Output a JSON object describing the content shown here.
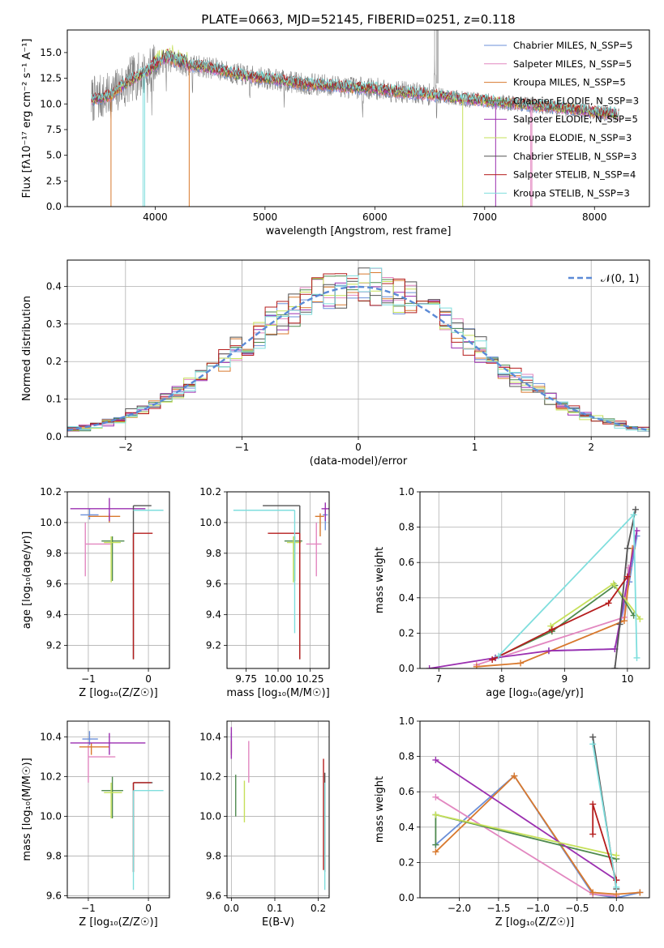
{
  "colors": {
    "series": [
      "#6b8fd8",
      "#e287c0",
      "#d8792e",
      "#4e8a4e",
      "#9b2fb0",
      "#c6e05a",
      "#545454",
      "#b51d1d",
      "#7fdedd"
    ],
    "data": "#808080",
    "data_light": "#b8b8b8",
    "normal": "#5b8ad6"
  },
  "chart_data": [
    {
      "id": "spectrum",
      "type": "line",
      "title": "PLATE=0663, MJD=52145, FIBERID=0251, z=0.118",
      "xlabel": "wavelength [Angstrom, rest frame]",
      "ylabel": "Flux [fλ10⁻¹⁷ erg cm⁻² s⁻¹ A⁻¹]",
      "xlim": [
        3200,
        8500
      ],
      "ylim": [
        0,
        17.2
      ],
      "xticks": [
        4000,
        5000,
        6000,
        7000,
        8000
      ],
      "yticks": [
        0.0,
        2.5,
        5.0,
        7.5,
        10.0,
        12.5,
        15.0
      ],
      "grid": false,
      "legend_position": "top-right",
      "continuum": [
        [
          3420,
          10.4
        ],
        [
          3500,
          10.6
        ],
        [
          3600,
          10.8
        ],
        [
          3700,
          11.8
        ],
        [
          3800,
          12.5
        ],
        [
          3900,
          13.0
        ],
        [
          4000,
          13.6
        ],
        [
          4100,
          14.3
        ],
        [
          4200,
          14.0
        ],
        [
          4300,
          13.7
        ],
        [
          4400,
          13.7
        ],
        [
          4500,
          13.5
        ],
        [
          4600,
          13.3
        ],
        [
          4700,
          13.0
        ],
        [
          4800,
          12.8
        ],
        [
          4900,
          12.6
        ],
        [
          5000,
          12.5
        ],
        [
          5200,
          12.2
        ],
        [
          5400,
          11.9
        ],
        [
          5600,
          11.8
        ],
        [
          5800,
          11.6
        ],
        [
          6000,
          11.5
        ],
        [
          6200,
          11.2
        ],
        [
          6400,
          11.0
        ],
        [
          6600,
          10.8
        ],
        [
          6800,
          10.5
        ],
        [
          7000,
          10.3
        ],
        [
          7200,
          10.1
        ],
        [
          7400,
          9.9
        ],
        [
          7600,
          9.7
        ],
        [
          7800,
          9.5
        ],
        [
          8000,
          9.2
        ],
        [
          8200,
          9.0
        ]
      ],
      "series": [
        {
          "name": "Chabrier MILES, N_SSP=5"
        },
        {
          "name": "Salpeter MILES, N_SSP=5"
        },
        {
          "name": "Kroupa MILES, N_SSP=5"
        },
        {
          "name": "Chabrier ELODIE, N_SSP=3"
        },
        {
          "name": "Salpeter ELODIE, N_SSP=5"
        },
        {
          "name": "Kroupa ELODIE, N_SSP=3"
        },
        {
          "name": "Chabrier STELIB, N_SSP=3"
        },
        {
          "name": "Salpeter STELIB, N_SSP=4"
        },
        {
          "name": "Kroupa STELIB, N_SSP=3"
        }
      ]
    },
    {
      "id": "residuals",
      "type": "line",
      "xlabel": "(data-model)/error",
      "ylabel": "Normed distribution",
      "xlim": [
        -2.5,
        2.5
      ],
      "ylim": [
        0,
        0.47
      ],
      "xticks": [
        -2,
        -1,
        0,
        1,
        2
      ],
      "yticks": [
        0.0,
        0.1,
        0.2,
        0.3,
        0.4
      ],
      "grid": true,
      "legend_position": "top-right",
      "normal_label": "𝒩(0, 1)",
      "bin_edges": [
        -2.5,
        2.5
      ],
      "bins": 50
    },
    {
      "id": "age_vs_Z",
      "type": "scatter",
      "xlabel": "Z [log₁₀(Z/Z☉)]",
      "ylabel": "age  [log₁₀(age/yr)]",
      "xlim": [
        -1.35,
        0.35
      ],
      "ylim": [
        9.05,
        10.2
      ],
      "xticks": [
        -1,
        0
      ],
      "yticks": [
        9.2,
        9.4,
        9.6,
        9.8,
        10.0,
        10.2
      ],
      "grid": true,
      "points": [
        {
          "s": 0,
          "x": -0.98,
          "xe": [
            0.15,
            0.15
          ],
          "y": 10.05,
          "ye": [
            0.03,
            0.04
          ]
        },
        {
          "s": 1,
          "x": -1.05,
          "xe": [
            0.0,
            0.45
          ],
          "y": 9.86,
          "ye": [
            0.21,
            0.14
          ]
        },
        {
          "s": 2,
          "x": -0.65,
          "xe": [
            0.35,
            0.18
          ],
          "y": 10.04,
          "ye": [
            0.04,
            0.02
          ]
        },
        {
          "s": 3,
          "x": -0.6,
          "xe": [
            0.18,
            0.2
          ],
          "y": 9.88,
          "ye": [
            0.26,
            0.03
          ]
        },
        {
          "s": 4,
          "x": -0.65,
          "xe": [
            0.65,
            0.6
          ],
          "y": 10.09,
          "ye": [
            0.08,
            0.07
          ]
        },
        {
          "s": 5,
          "x": -0.62,
          "xe": [
            0.12,
            0.16
          ],
          "y": 9.87,
          "ye": [
            0.26,
            0.04
          ]
        },
        {
          "s": 6,
          "x": -0.25,
          "xe": [
            0.0,
            0.3
          ],
          "y": 10.11,
          "ye": [
            1.0,
            0.0
          ]
        },
        {
          "s": 7,
          "x": -0.25,
          "xe": [
            0.0,
            0.32
          ],
          "y": 9.93,
          "ye": [
            0.82,
            0.0
          ]
        },
        {
          "s": 8,
          "x": -0.25,
          "xe": [
            0.0,
            0.5
          ],
          "y": 10.08,
          "ye": [
            0.0,
            0.0
          ]
        }
      ]
    },
    {
      "id": "age_vs_mass",
      "type": "scatter",
      "xlabel": "mass [log₁₀(M/M☉)]",
      "ylabel": "",
      "xlim": [
        9.6,
        10.4
      ],
      "ylim": [
        9.05,
        10.2
      ],
      "xticks": [
        9.75,
        10.0,
        10.25
      ],
      "xtick_labels": [
        "9.75",
        "10.00",
        "10.25"
      ],
      "yticks": [
        9.2,
        9.4,
        9.6,
        9.8,
        10.0,
        10.2
      ],
      "grid": true,
      "points": [
        {
          "s": 0,
          "x": 10.37,
          "xe": [
            0.02,
            0.02
          ],
          "y": 10.05,
          "ye": [
            0.1,
            0.03
          ]
        },
        {
          "s": 1,
          "x": 10.3,
          "xe": [
            0.08,
            0.04
          ],
          "y": 9.86,
          "ye": [
            0.21,
            0.14
          ]
        },
        {
          "s": 2,
          "x": 10.33,
          "xe": [
            0.04,
            0.03
          ],
          "y": 10.04,
          "ye": [
            0.13,
            0.02
          ]
        },
        {
          "s": 3,
          "x": 10.13,
          "xe": [
            0.08,
            0.06
          ],
          "y": 9.88,
          "ye": [
            0.26,
            0.03
          ]
        },
        {
          "s": 4,
          "x": 10.37,
          "xe": [
            0.03,
            0.03
          ],
          "y": 10.09,
          "ye": [
            0.08,
            0.04
          ]
        },
        {
          "s": 5,
          "x": 10.12,
          "xe": [
            0.05,
            0.06
          ],
          "y": 9.87,
          "ye": [
            0.26,
            0.04
          ]
        },
        {
          "s": 6,
          "x": 10.17,
          "xe": [
            0.29,
            0.0
          ],
          "y": 10.11,
          "ye": [
            1.0,
            0.0
          ]
        },
        {
          "s": 7,
          "x": 10.17,
          "xe": [
            0.25,
            0.0
          ],
          "y": 9.93,
          "ye": [
            0.82,
            0.0
          ]
        },
        {
          "s": 8,
          "x": 10.13,
          "xe": [
            0.48,
            0.0
          ],
          "y": 10.08,
          "ye": [
            0.8,
            0.0
          ]
        }
      ]
    },
    {
      "id": "weight_vs_age",
      "type": "line",
      "xlabel": "age  [log₁₀(age/yr)]",
      "ylabel": "mass weight",
      "xlim": [
        6.7,
        10.35
      ],
      "ylim": [
        0,
        1.0
      ],
      "xticks": [
        7,
        8,
        9,
        10
      ],
      "yticks": [
        0.0,
        0.2,
        0.4,
        0.6,
        0.8,
        1.0
      ],
      "grid": true,
      "lines": [
        {
          "s": 0,
          "pts": [
            [
              8.75,
              0.1
            ],
            [
              9.8,
              0.11
            ],
            [
              10.03,
              0.49
            ],
            [
              10.15,
              0.75
            ]
          ]
        },
        {
          "s": 1,
          "pts": [
            [
              7.6,
              0.02
            ],
            [
              9.95,
              0.29
            ],
            [
              10.02,
              0.57
            ]
          ]
        },
        {
          "s": 2,
          "pts": [
            [
              7.6,
              0.01
            ],
            [
              8.3,
              0.03
            ],
            [
              9.95,
              0.27
            ],
            [
              10.08,
              0.68
            ]
          ]
        },
        {
          "s": 3,
          "pts": [
            [
              7.9,
              0.06
            ],
            [
              8.8,
              0.21
            ],
            [
              9.8,
              0.47
            ],
            [
              10.1,
              0.3
            ]
          ]
        },
        {
          "s": 4,
          "pts": [
            [
              6.85,
              0.0
            ],
            [
              7.9,
              0.06
            ],
            [
              8.75,
              0.1
            ],
            [
              9.8,
              0.11
            ],
            [
              10.15,
              0.78
            ]
          ]
        },
        {
          "s": 5,
          "pts": [
            [
              8.78,
              0.24
            ],
            [
              9.78,
              0.48
            ],
            [
              10.2,
              0.28
            ]
          ]
        },
        {
          "s": 6,
          "pts": [
            [
              9.8,
              0.0
            ],
            [
              9.88,
              0.25
            ],
            [
              10.0,
              0.68
            ],
            [
              10.13,
              0.9
            ]
          ]
        },
        {
          "s": 7,
          "pts": [
            [
              7.85,
              0.05
            ],
            [
              8.8,
              0.22
            ],
            [
              9.7,
              0.37
            ],
            [
              10.0,
              0.52
            ]
          ]
        },
        {
          "s": 8,
          "pts": [
            [
              7.95,
              0.07
            ],
            [
              10.1,
              0.87
            ],
            [
              10.15,
              0.06
            ]
          ]
        }
      ]
    },
    {
      "id": "mass_vs_Z",
      "type": "scatter",
      "xlabel": "Z [log₁₀(Z/Z☉)]",
      "ylabel": "mass [log₁₀(M/M☉)]",
      "xlim": [
        -1.35,
        0.35
      ],
      "ylim": [
        9.59,
        10.48
      ],
      "xticks": [
        -1,
        0
      ],
      "yticks": [
        9.6,
        9.8,
        10.0,
        10.2,
        10.4
      ],
      "grid": true,
      "points": [
        {
          "s": 0,
          "x": -0.98,
          "xe": [
            0.12,
            0.14
          ],
          "y": 10.39,
          "ye": [
            0.03,
            0.04
          ]
        },
        {
          "s": 1,
          "x": -1.0,
          "xe": [
            0.0,
            0.45
          ],
          "y": 10.3,
          "ye": [
            0.13,
            0.06
          ]
        },
        {
          "s": 2,
          "x": -0.95,
          "xe": [
            0.2,
            0.3
          ],
          "y": 10.35,
          "ye": [
            0.04,
            0.02
          ]
        },
        {
          "s": 3,
          "x": -0.6,
          "xe": [
            0.18,
            0.18
          ],
          "y": 10.13,
          "ye": [
            0.14,
            0.07
          ]
        },
        {
          "s": 4,
          "x": -0.65,
          "xe": [
            0.65,
            0.6
          ],
          "y": 10.37,
          "ye": [
            0.06,
            0.05
          ]
        },
        {
          "s": 5,
          "x": -0.62,
          "xe": [
            0.12,
            0.18
          ],
          "y": 10.12,
          "ye": [
            0.13,
            0.05
          ]
        },
        {
          "s": 6,
          "x": -0.25,
          "xe": [
            0.0,
            0.32
          ],
          "y": 10.17,
          "ye": [
            0.45,
            0.0
          ]
        },
        {
          "s": 7,
          "x": -0.25,
          "xe": [
            0.0,
            0.3
          ],
          "y": 10.17,
          "ye": [
            0.45,
            0.0
          ]
        },
        {
          "s": 8,
          "x": -0.25,
          "xe": [
            0.0,
            0.5
          ],
          "y": 10.13,
          "ye": [
            0.5,
            0.0
          ]
        }
      ]
    },
    {
      "id": "mass_vs_EBV",
      "type": "scatter",
      "xlabel": "E(B-V)",
      "ylabel": "",
      "xlim": [
        -0.01,
        0.225
      ],
      "ylim": [
        9.59,
        10.48
      ],
      "xticks": [
        0.0,
        0.1,
        0.2
      ],
      "xtick_labels": [
        "0.0",
        "0.1",
        "0.2"
      ],
      "yticks": [
        9.6,
        9.8,
        10.0,
        10.2,
        10.4
      ],
      "grid": true,
      "points": [
        {
          "s": 0,
          "x": 0.0,
          "y": 10.38,
          "ye": [
            0.06,
            0.04
          ]
        },
        {
          "s": 1,
          "x": 0.04,
          "y": 10.28,
          "ye": [
            0.11,
            0.1
          ]
        },
        {
          "s": 2,
          "x": 0.0,
          "y": 10.35,
          "ye": [
            0.04,
            0.03
          ]
        },
        {
          "s": 3,
          "x": 0.01,
          "y": 10.1,
          "ye": [
            0.1,
            0.11
          ]
        },
        {
          "s": 4,
          "x": 0.0,
          "y": 10.35,
          "ye": [
            0.06,
            0.1
          ]
        },
        {
          "s": 5,
          "x": 0.03,
          "y": 10.1,
          "ye": [
            0.13,
            0.08
          ]
        },
        {
          "s": 6,
          "x": 0.215,
          "y": 10.0,
          "ye": [
            0.28,
            0.22
          ]
        },
        {
          "s": 7,
          "x": 0.212,
          "y": 10.05,
          "ye": [
            0.32,
            0.24
          ]
        },
        {
          "s": 8,
          "x": 0.215,
          "y": 9.9,
          "ye": [
            0.27,
            0.27
          ]
        }
      ]
    },
    {
      "id": "weight_vs_Z",
      "type": "line",
      "xlabel": "Z [log₁₀(Z/Z☉)]",
      "ylabel": "mass weight",
      "xlim": [
        -2.5,
        0.42
      ],
      "ylim": [
        0,
        1.0
      ],
      "xticks": [
        -2.0,
        -1.5,
        -1.0,
        -0.5,
        0.0
      ],
      "xtick_labels": [
        "−2.0",
        "−1.5",
        "−1.0",
        "−0.5",
        "0.0"
      ],
      "yticks": [
        0.0,
        0.2,
        0.4,
        0.6,
        0.8,
        1.0
      ],
      "grid": true,
      "lines": [
        {
          "s": 0,
          "pts": [
            [
              -2.3,
              0.3
            ],
            [
              -1.3,
              0.69
            ],
            [
              -0.3,
              0.02
            ],
            [
              0.0,
              0.0
            ],
            [
              0.3,
              0.03
            ]
          ]
        },
        {
          "s": 1,
          "pts": [
            [
              -2.3,
              0.57
            ],
            [
              -0.3,
              0.02
            ],
            [
              0.0,
              0.01
            ]
          ]
        },
        {
          "s": 2,
          "pts": [
            [
              -2.3,
              0.26
            ],
            [
              -1.3,
              0.69
            ],
            [
              -0.3,
              0.03
            ],
            [
              0.0,
              0.02
            ],
            [
              0.3,
              0.03
            ]
          ]
        },
        {
          "s": 3,
          "pts": [
            [
              -2.3,
              0.3
            ],
            [
              -2.3,
              0.47
            ],
            [
              0.0,
              0.22
            ]
          ]
        },
        {
          "s": 4,
          "pts": [
            [
              -2.3,
              0.78
            ],
            [
              0.0,
              0.1
            ]
          ]
        },
        {
          "s": 5,
          "pts": [
            [
              -2.3,
              0.47
            ],
            [
              0.0,
              0.24
            ]
          ]
        },
        {
          "s": 6,
          "pts": [
            [
              -0.3,
              0.91
            ],
            [
              0.0,
              0.05
            ]
          ]
        },
        {
          "s": 7,
          "pts": [
            [
              -0.3,
              0.36
            ],
            [
              -0.3,
              0.53
            ],
            [
              0.0,
              0.1
            ]
          ]
        },
        {
          "s": 8,
          "pts": [
            [
              -0.3,
              0.87
            ],
            [
              0.0,
              0.06
            ]
          ]
        }
      ]
    }
  ]
}
